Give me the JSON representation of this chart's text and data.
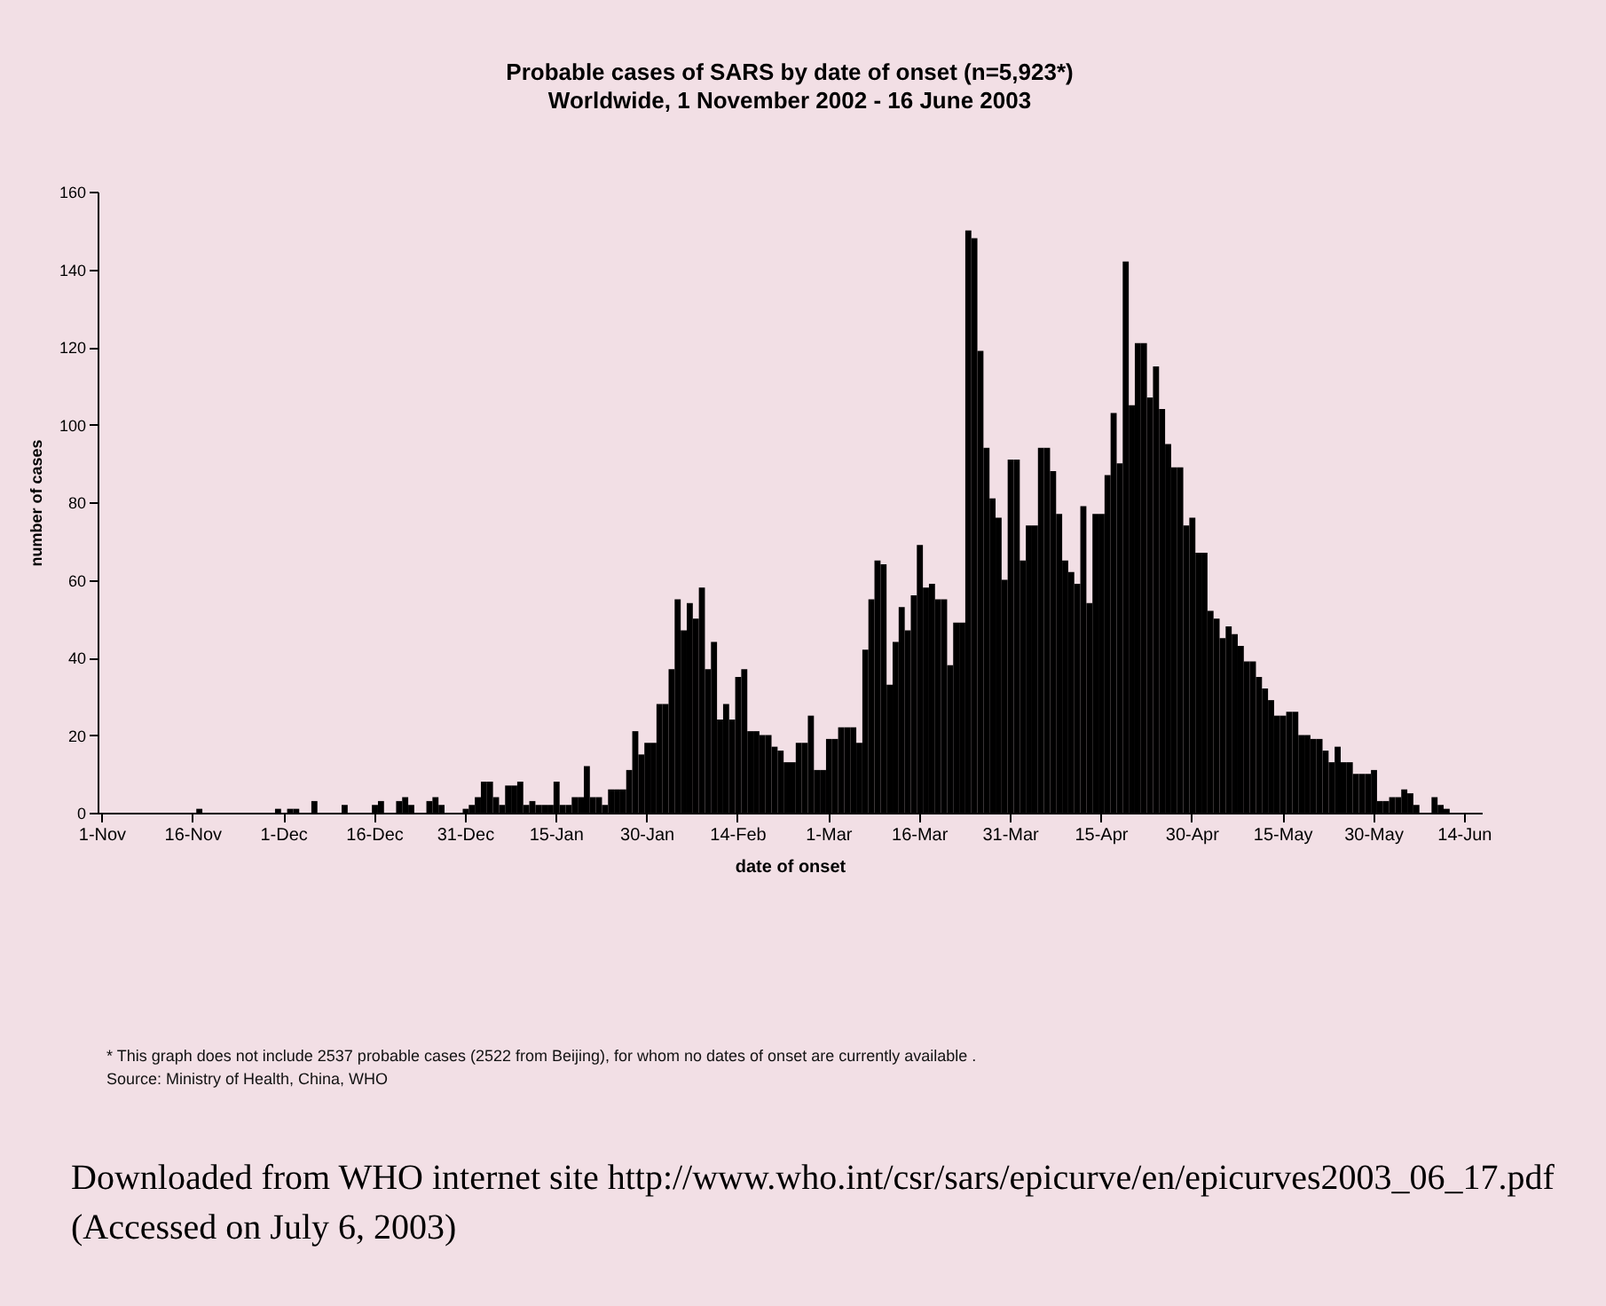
{
  "chart_data": {
    "type": "bar",
    "title": "Probable cases of SARS by date of onset (n=5,923*)",
    "subtitle": "Worldwide, 1 November 2002 -  16 June 2003",
    "xlabel": "date of onset",
    "ylabel": "number of cases",
    "categories": [
      "1-Nov",
      null,
      null,
      null,
      null,
      null,
      null,
      null,
      null,
      null,
      null,
      null,
      null,
      null,
      null,
      "16-Nov",
      null,
      null,
      null,
      null,
      null,
      null,
      null,
      null,
      null,
      null,
      null,
      null,
      null,
      null,
      "1-Dec",
      null,
      null,
      null,
      null,
      null,
      null,
      null,
      null,
      null,
      null,
      null,
      null,
      null,
      null,
      "16-Dec",
      null,
      null,
      null,
      null,
      null,
      null,
      null,
      null,
      null,
      null,
      null,
      null,
      null,
      null,
      "31-Dec",
      null,
      null,
      null,
      null,
      null,
      null,
      null,
      null,
      null,
      null,
      null,
      null,
      null,
      null,
      "15-Jan",
      null,
      null,
      null,
      null,
      null,
      null,
      null,
      null,
      null,
      null,
      null,
      null,
      null,
      null,
      "30-Jan",
      null,
      null,
      null,
      null,
      null,
      null,
      null,
      null,
      null,
      null,
      null,
      null,
      null,
      null,
      "14-Feb",
      null,
      null,
      null,
      null,
      null,
      null,
      null,
      null,
      null,
      null,
      null,
      null,
      null,
      null,
      "1-Mar",
      null,
      null,
      null,
      null,
      null,
      null,
      null,
      null,
      null,
      null,
      null,
      null,
      null,
      null,
      "16-Mar",
      null,
      null,
      null,
      null,
      null,
      null,
      null,
      null,
      null,
      null,
      null,
      null,
      null,
      null,
      "31-Mar",
      null,
      null,
      null,
      null,
      null,
      null,
      null,
      null,
      null,
      null,
      null,
      null,
      null,
      null,
      "15-Apr",
      null,
      null,
      null,
      null,
      null,
      null,
      null,
      null,
      null,
      null,
      null,
      null,
      null,
      null,
      "30-Apr",
      null,
      null,
      null,
      null,
      null,
      null,
      null,
      null,
      null,
      null,
      null,
      null,
      null,
      null,
      "15-May",
      null,
      null,
      null,
      null,
      null,
      null,
      null,
      null,
      null,
      null,
      null,
      null,
      null,
      null,
      "30-May",
      null,
      null,
      null,
      null,
      null,
      null,
      null,
      null,
      null,
      null,
      null,
      null,
      null,
      null,
      "14-Jun",
      null,
      null
    ],
    "values": [
      0,
      0,
      0,
      0,
      0,
      0,
      0,
      0,
      0,
      0,
      0,
      0,
      0,
      0,
      0,
      0,
      1,
      0,
      0,
      0,
      0,
      0,
      0,
      0,
      0,
      0,
      0,
      0,
      0,
      1,
      0,
      1,
      1,
      0,
      0,
      3,
      0,
      0,
      0,
      0,
      2,
      0,
      0,
      0,
      0,
      2,
      3,
      0,
      0,
      3,
      4,
      2,
      0,
      0,
      3,
      4,
      2,
      0,
      0,
      0,
      1,
      2,
      4,
      8,
      8,
      4,
      2,
      7,
      7,
      8,
      2,
      3,
      2,
      2,
      2,
      8,
      2,
      2,
      4,
      4,
      12,
      4,
      4,
      2,
      6,
      6,
      6,
      11,
      21,
      15,
      18,
      18,
      28,
      28,
      37,
      55,
      47,
      54,
      50,
      58,
      37,
      44,
      24,
      28,
      24,
      35,
      37,
      21,
      21,
      20,
      20,
      17,
      16,
      13,
      13,
      18,
      18,
      25,
      11,
      11,
      19,
      19,
      22,
      22,
      22,
      18,
      42,
      55,
      65,
      64,
      33,
      44,
      53,
      47,
      56,
      69,
      58,
      59,
      55,
      55,
      38,
      49,
      49,
      150,
      148,
      119,
      94,
      81,
      76,
      60,
      91,
      91,
      65,
      74,
      74,
      94,
      94,
      88,
      77,
      65,
      62,
      59,
      79,
      54,
      77,
      77,
      87,
      103,
      90,
      142,
      105,
      121,
      121,
      107,
      115,
      104,
      95,
      89,
      89,
      74,
      76,
      67,
      67,
      52,
      50,
      45,
      48,
      46,
      43,
      39,
      39,
      35,
      32,
      29,
      25,
      25,
      26,
      26,
      20,
      20,
      19,
      19,
      16,
      13,
      17,
      13,
      13,
      10,
      10,
      10,
      11,
      3,
      3,
      4,
      4,
      6,
      5,
      2,
      0,
      0,
      4,
      2,
      1,
      0,
      0,
      0,
      0,
      0
    ],
    "color": "#000000",
    "ylim": [
      0,
      160
    ],
    "yticks": [
      0,
      20,
      40,
      60,
      80,
      100,
      120,
      140,
      160
    ],
    "grid": false,
    "annotations": [
      "* This graph does not include 2537 probable cases (2522 from Beijing), for whom no dates of onset are currently available .",
      "Source: Ministry of Health, China, WHO",
      "Downloaded from WHO internet site http://www.who.int/csr/sars/epicurve/en/epicurves2003_06_17.pdf (Accessed on July 6, 2003)"
    ]
  }
}
